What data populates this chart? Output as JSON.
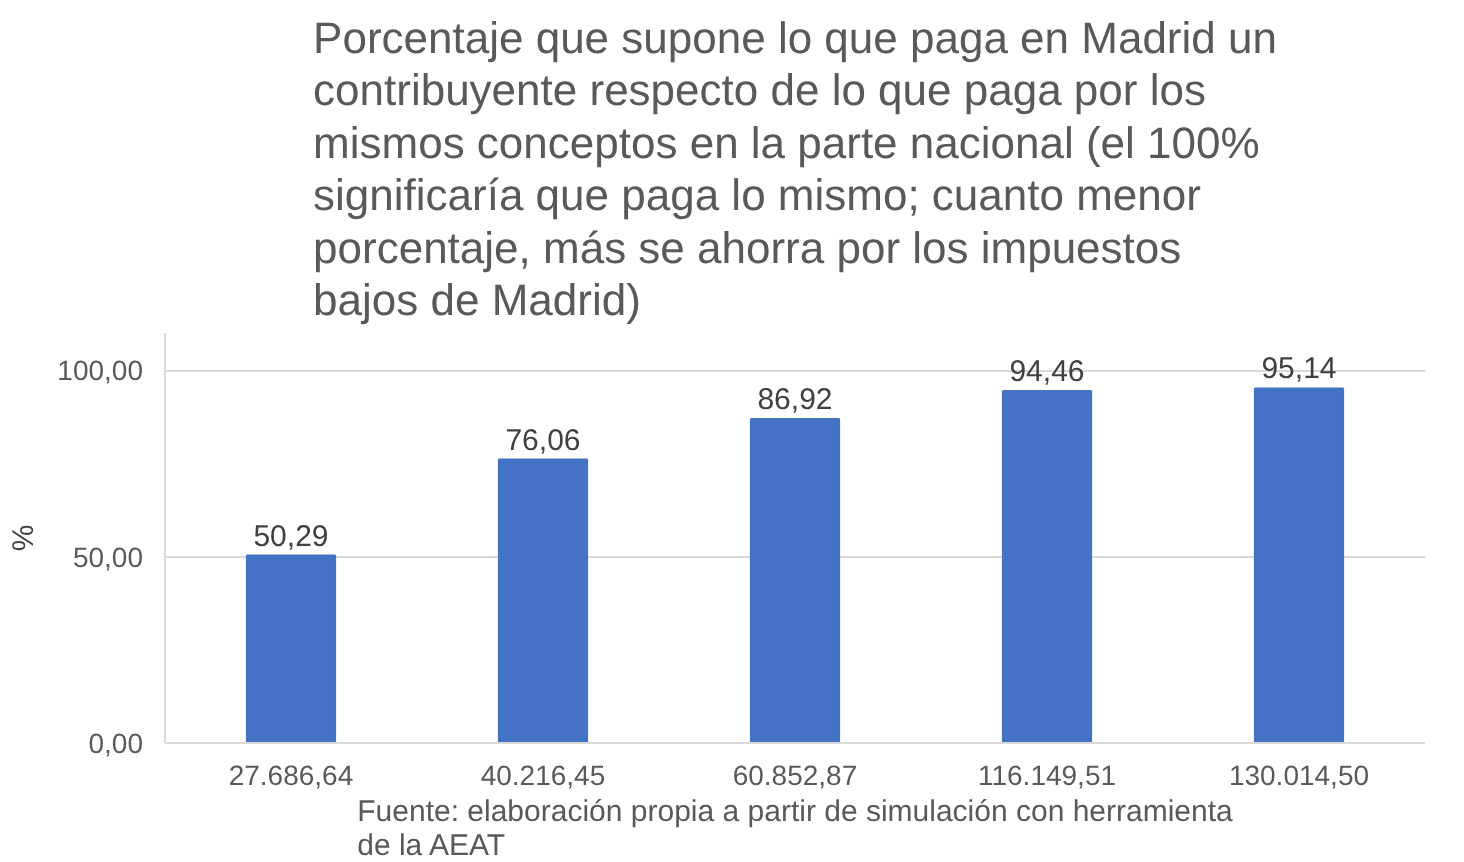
{
  "chart_data": {
    "type": "bar",
    "title": "Porcentaje que supone lo que paga en Madrid un contribuyente respecto de lo que paga por los mismos conceptos en la parte nacional (el 100% significaría que paga lo mismo; cuanto menor porcentaje, más se ahorra por los impuestos bajos de Madrid)",
    "ylabel": "%",
    "categories": [
      "27.686,64",
      "40.216,45",
      "60.852,87",
      "116.149,51",
      "130.014,50"
    ],
    "values": [
      50.29,
      76.06,
      86.92,
      94.46,
      95.14
    ],
    "color": "#4472c4",
    "ylim": [
      0,
      110
    ],
    "yticks": [
      {
        "value": 0,
        "label": "0,00"
      },
      {
        "value": 50,
        "label": "50,00"
      },
      {
        "value": 100,
        "label": "100,00"
      }
    ],
    "grid": "y",
    "value_labels": [
      "50,29",
      "76,06",
      "86,92",
      "94,46",
      "95,14"
    ],
    "annotations": [
      "Fuente: elaboración propia a partir de simulación con herramienta de la AEAT"
    ]
  }
}
